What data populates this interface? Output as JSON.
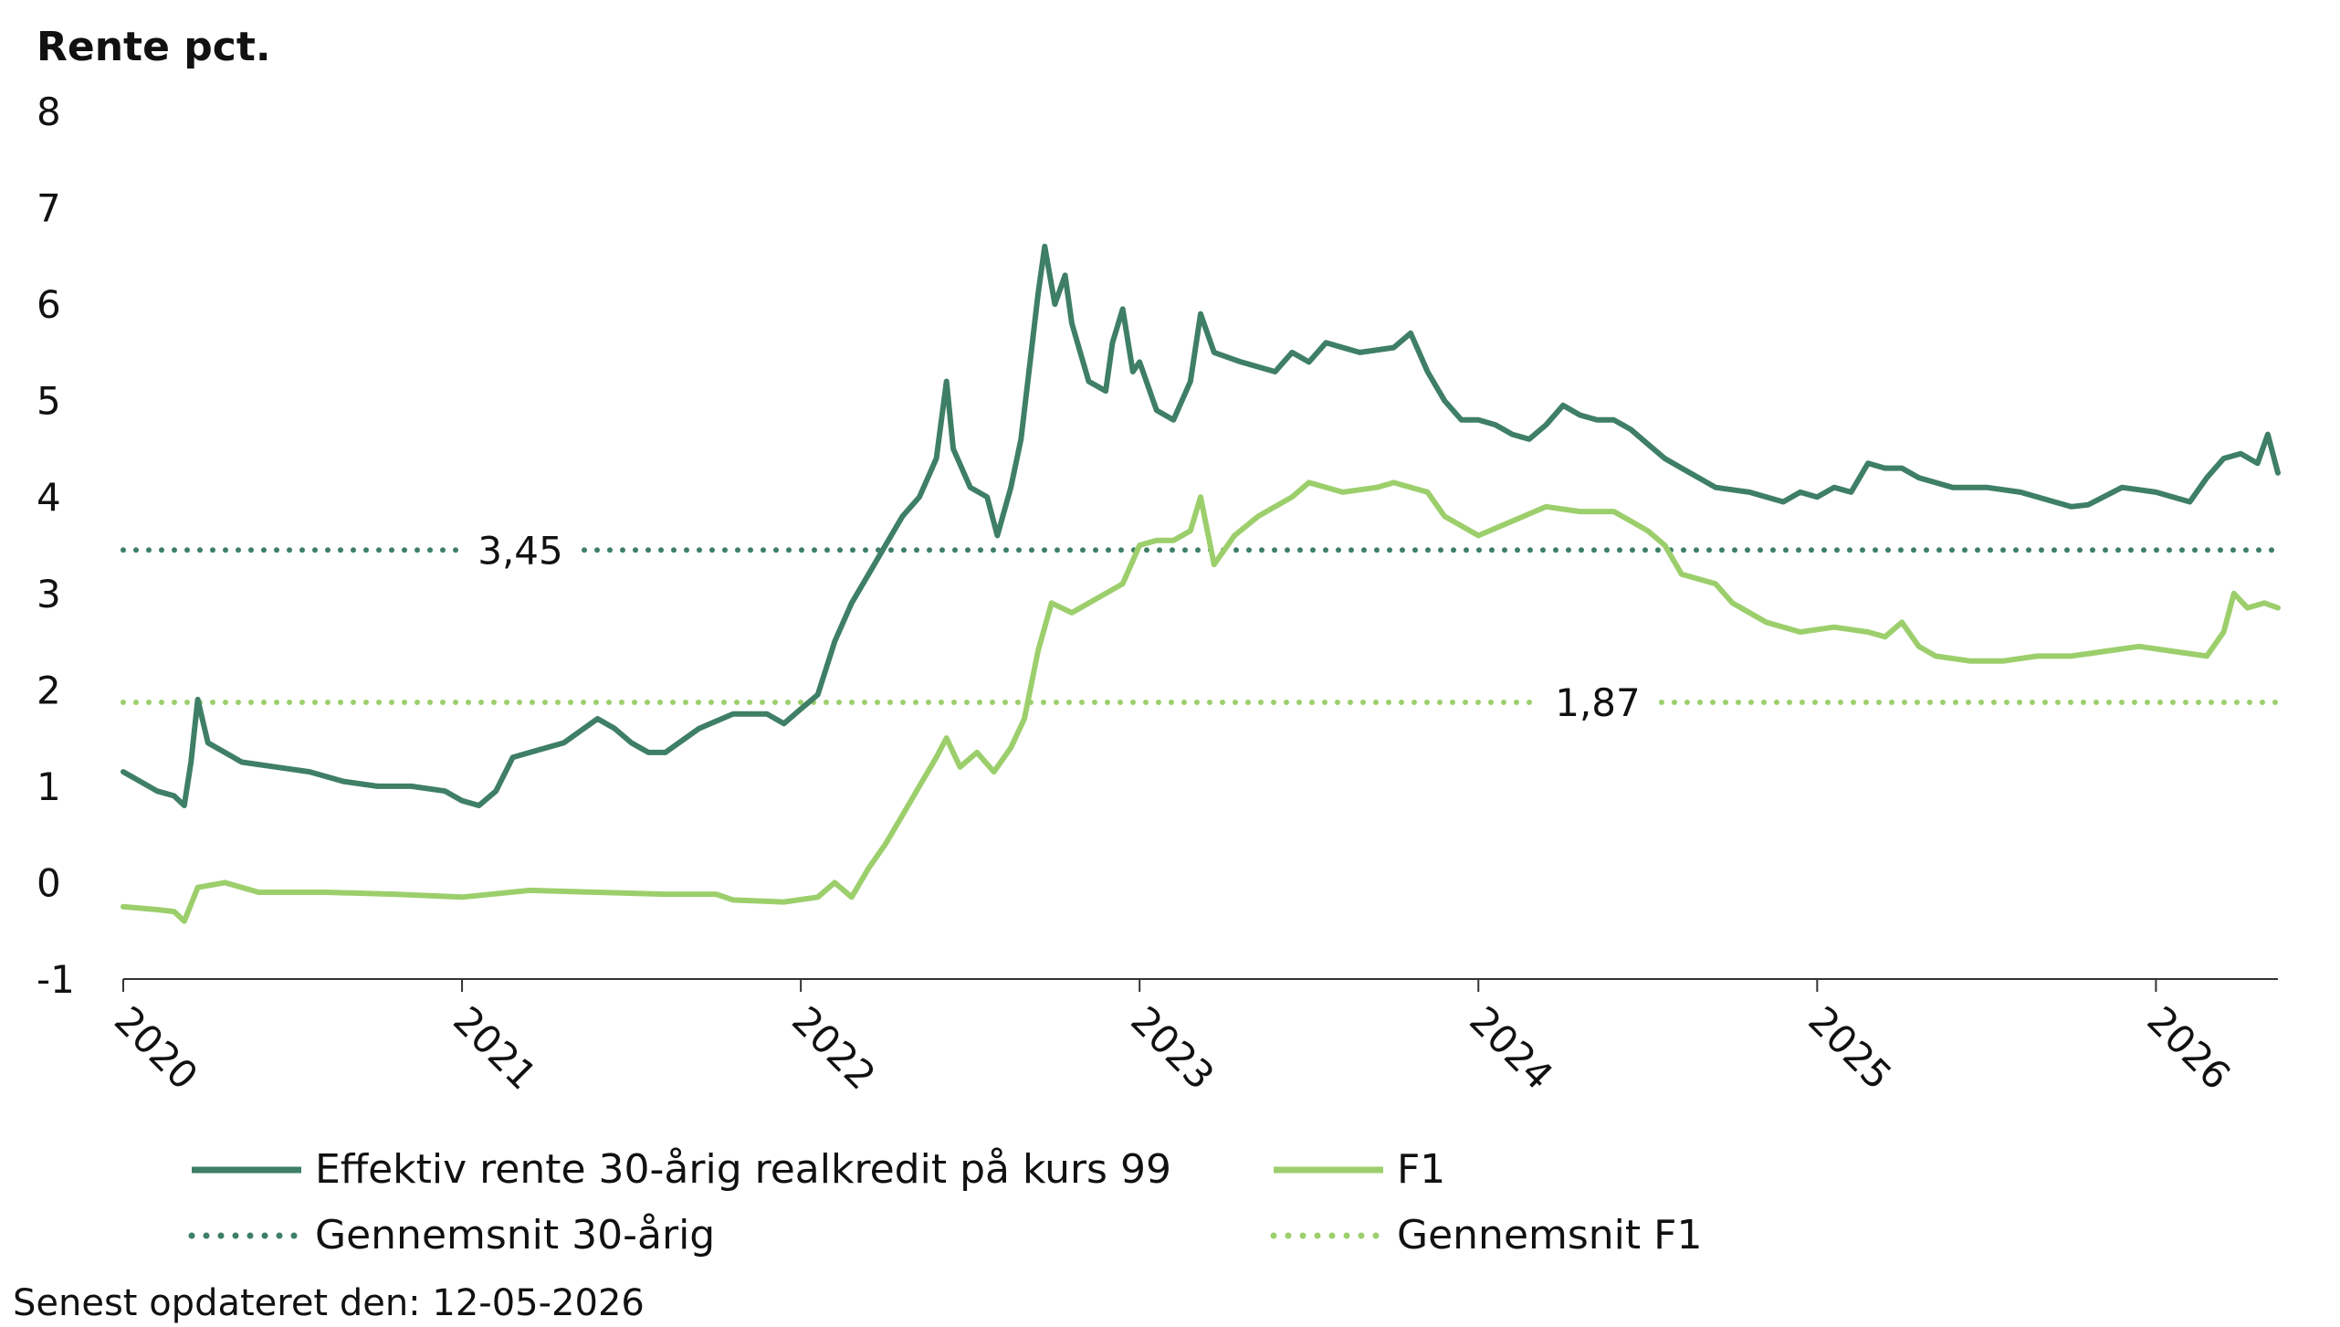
{
  "chart_data": {
    "type": "line",
    "ylabel": "Rente pct.",
    "ylim": [
      -1,
      8
    ],
    "yticks": [
      "8",
      "7",
      "6",
      "5",
      "4",
      "3",
      "2",
      "1",
      "0",
      "-1"
    ],
    "x_tick_labels": [
      "2020",
      "2021",
      "2022",
      "2023",
      "2024",
      "2025",
      "2026"
    ],
    "xlim": [
      2020.0,
      2026.36
    ],
    "colors": {
      "dark": "#3e7f66",
      "light": "#9ccf6c"
    },
    "series": [
      {
        "name": "Effektiv rente 30-årig realkredit på kurs 99",
        "color": "#3e7f66",
        "style": "solid",
        "points": [
          [
            2020.0,
            1.15
          ],
          [
            2020.05,
            1.05
          ],
          [
            2020.1,
            0.95
          ],
          [
            2020.15,
            0.9
          ],
          [
            2020.18,
            0.8
          ],
          [
            2020.2,
            1.25
          ],
          [
            2020.22,
            1.9
          ],
          [
            2020.25,
            1.45
          ],
          [
            2020.3,
            1.35
          ],
          [
            2020.35,
            1.25
          ],
          [
            2020.45,
            1.2
          ],
          [
            2020.55,
            1.15
          ],
          [
            2020.65,
            1.05
          ],
          [
            2020.75,
            1.0
          ],
          [
            2020.85,
            1.0
          ],
          [
            2020.95,
            0.95
          ],
          [
            2021.0,
            0.85
          ],
          [
            2021.05,
            0.8
          ],
          [
            2021.1,
            0.95
          ],
          [
            2021.15,
            1.3
          ],
          [
            2021.2,
            1.35
          ],
          [
            2021.3,
            1.45
          ],
          [
            2021.4,
            1.7
          ],
          [
            2021.45,
            1.6
          ],
          [
            2021.5,
            1.45
          ],
          [
            2021.55,
            1.35
          ],
          [
            2021.6,
            1.35
          ],
          [
            2021.7,
            1.6
          ],
          [
            2021.8,
            1.75
          ],
          [
            2021.9,
            1.75
          ],
          [
            2021.95,
            1.65
          ],
          [
            2022.0,
            1.8
          ],
          [
            2022.05,
            1.95
          ],
          [
            2022.1,
            2.5
          ],
          [
            2022.15,
            2.9
          ],
          [
            2022.2,
            3.2
          ],
          [
            2022.25,
            3.5
          ],
          [
            2022.3,
            3.8
          ],
          [
            2022.35,
            4.0
          ],
          [
            2022.4,
            4.4
          ],
          [
            2022.43,
            5.2
          ],
          [
            2022.45,
            4.5
          ],
          [
            2022.5,
            4.1
          ],
          [
            2022.55,
            4.0
          ],
          [
            2022.58,
            3.6
          ],
          [
            2022.62,
            4.1
          ],
          [
            2022.65,
            4.6
          ],
          [
            2022.68,
            5.5
          ],
          [
            2022.7,
            6.1
          ],
          [
            2022.72,
            6.6
          ],
          [
            2022.75,
            6.0
          ],
          [
            2022.78,
            6.3
          ],
          [
            2022.8,
            5.8
          ],
          [
            2022.85,
            5.2
          ],
          [
            2022.9,
            5.1
          ],
          [
            2022.92,
            5.6
          ],
          [
            2022.95,
            5.95
          ],
          [
            2022.98,
            5.3
          ],
          [
            2023.0,
            5.4
          ],
          [
            2023.05,
            4.9
          ],
          [
            2023.1,
            4.8
          ],
          [
            2023.15,
            5.2
          ],
          [
            2023.18,
            5.9
          ],
          [
            2023.22,
            5.5
          ],
          [
            2023.3,
            5.4
          ],
          [
            2023.4,
            5.3
          ],
          [
            2023.45,
            5.5
          ],
          [
            2023.5,
            5.4
          ],
          [
            2023.55,
            5.6
          ],
          [
            2023.65,
            5.5
          ],
          [
            2023.75,
            5.55
          ],
          [
            2023.8,
            5.7
          ],
          [
            2023.85,
            5.3
          ],
          [
            2023.9,
            5.0
          ],
          [
            2023.95,
            4.8
          ],
          [
            2024.0,
            4.8
          ],
          [
            2024.05,
            4.75
          ],
          [
            2024.1,
            4.65
          ],
          [
            2024.15,
            4.6
          ],
          [
            2024.2,
            4.75
          ],
          [
            2024.25,
            4.95
          ],
          [
            2024.3,
            4.85
          ],
          [
            2024.35,
            4.8
          ],
          [
            2024.4,
            4.8
          ],
          [
            2024.45,
            4.7
          ],
          [
            2024.5,
            4.55
          ],
          [
            2024.55,
            4.4
          ],
          [
            2024.6,
            4.3
          ],
          [
            2024.65,
            4.2
          ],
          [
            2024.7,
            4.1
          ],
          [
            2024.8,
            4.05
          ],
          [
            2024.9,
            3.95
          ],
          [
            2024.95,
            4.05
          ],
          [
            2025.0,
            4.0
          ],
          [
            2025.05,
            4.1
          ],
          [
            2025.1,
            4.05
          ],
          [
            2025.15,
            4.35
          ],
          [
            2025.2,
            4.3
          ],
          [
            2025.25,
            4.3
          ],
          [
            2025.3,
            4.2
          ],
          [
            2025.4,
            4.1
          ],
          [
            2025.5,
            4.1
          ],
          [
            2025.6,
            4.05
          ],
          [
            2025.7,
            3.95
          ],
          [
            2025.75,
            3.9
          ],
          [
            2025.8,
            3.92
          ],
          [
            2025.9,
            4.1
          ],
          [
            2026.0,
            4.05
          ],
          [
            2026.1,
            3.95
          ],
          [
            2026.15,
            4.2
          ],
          [
            2026.2,
            4.4
          ],
          [
            2026.25,
            4.45
          ],
          [
            2026.3,
            4.35
          ],
          [
            2026.33,
            4.65
          ],
          [
            2026.36,
            4.25
          ]
        ]
      },
      {
        "name": "F1",
        "color": "#9ccf6c",
        "style": "solid",
        "points": [
          [
            2020.0,
            -0.25
          ],
          [
            2020.1,
            -0.28
          ],
          [
            2020.15,
            -0.3
          ],
          [
            2020.18,
            -0.4
          ],
          [
            2020.22,
            -0.05
          ],
          [
            2020.3,
            0.0
          ],
          [
            2020.4,
            -0.1
          ],
          [
            2020.6,
            -0.1
          ],
          [
            2020.8,
            -0.12
          ],
          [
            2021.0,
            -0.15
          ],
          [
            2021.2,
            -0.08
          ],
          [
            2021.4,
            -0.1
          ],
          [
            2021.6,
            -0.12
          ],
          [
            2021.75,
            -0.12
          ],
          [
            2021.8,
            -0.18
          ],
          [
            2021.95,
            -0.2
          ],
          [
            2022.05,
            -0.15
          ],
          [
            2022.1,
            0.0
          ],
          [
            2022.15,
            -0.15
          ],
          [
            2022.2,
            0.15
          ],
          [
            2022.25,
            0.4
          ],
          [
            2022.3,
            0.7
          ],
          [
            2022.35,
            1.0
          ],
          [
            2022.4,
            1.3
          ],
          [
            2022.43,
            1.5
          ],
          [
            2022.47,
            1.2
          ],
          [
            2022.52,
            1.35
          ],
          [
            2022.57,
            1.15
          ],
          [
            2022.62,
            1.4
          ],
          [
            2022.66,
            1.7
          ],
          [
            2022.7,
            2.4
          ],
          [
            2022.74,
            2.9
          ],
          [
            2022.8,
            2.8
          ],
          [
            2022.9,
            3.0
          ],
          [
            2022.95,
            3.1
          ],
          [
            2023.0,
            3.5
          ],
          [
            2023.05,
            3.55
          ],
          [
            2023.1,
            3.55
          ],
          [
            2023.15,
            3.65
          ],
          [
            2023.18,
            4.0
          ],
          [
            2023.22,
            3.3
          ],
          [
            2023.28,
            3.6
          ],
          [
            2023.35,
            3.8
          ],
          [
            2023.45,
            4.0
          ],
          [
            2023.5,
            4.15
          ],
          [
            2023.6,
            4.05
          ],
          [
            2023.7,
            4.1
          ],
          [
            2023.75,
            4.15
          ],
          [
            2023.85,
            4.05
          ],
          [
            2023.9,
            3.8
          ],
          [
            2024.0,
            3.6
          ],
          [
            2024.1,
            3.75
          ],
          [
            2024.2,
            3.9
          ],
          [
            2024.3,
            3.85
          ],
          [
            2024.4,
            3.85
          ],
          [
            2024.5,
            3.65
          ],
          [
            2024.55,
            3.5
          ],
          [
            2024.6,
            3.2
          ],
          [
            2024.7,
            3.1
          ],
          [
            2024.75,
            2.9
          ],
          [
            2024.85,
            2.7
          ],
          [
            2024.95,
            2.6
          ],
          [
            2025.05,
            2.65
          ],
          [
            2025.15,
            2.6
          ],
          [
            2025.2,
            2.55
          ],
          [
            2025.25,
            2.7
          ],
          [
            2025.3,
            2.45
          ],
          [
            2025.35,
            2.35
          ],
          [
            2025.45,
            2.3
          ],
          [
            2025.55,
            2.3
          ],
          [
            2025.65,
            2.35
          ],
          [
            2025.75,
            2.35
          ],
          [
            2025.85,
            2.4
          ],
          [
            2025.95,
            2.45
          ],
          [
            2026.05,
            2.4
          ],
          [
            2026.15,
            2.35
          ],
          [
            2026.2,
            2.6
          ],
          [
            2026.23,
            3.0
          ],
          [
            2026.27,
            2.85
          ],
          [
            2026.32,
            2.9
          ],
          [
            2026.36,
            2.85
          ]
        ]
      }
    ],
    "reference_lines": [
      {
        "name": "Gennemsnit 30-årig",
        "value": 3.45,
        "label": "3,45",
        "color": "#3e7f66",
        "style": "dotted"
      },
      {
        "name": "Gennemsnit F1",
        "value": 1.87,
        "label": "1,87",
        "color": "#9ccf6c",
        "style": "dotted"
      }
    ]
  },
  "legend": {
    "items": [
      {
        "label": "Effektiv rente 30-årig realkredit på kurs 99",
        "color": "#3e7f66",
        "style": "solid"
      },
      {
        "label": "F1",
        "color": "#9ccf6c",
        "style": "solid"
      },
      {
        "label": "Gennemsnit 30-årig",
        "color": "#3e7f66",
        "style": "dotted"
      },
      {
        "label": "Gennemsnit F1",
        "color": "#9ccf6c",
        "style": "dotted"
      }
    ]
  },
  "footer": {
    "updated": "Senest opdateret den: 12-05-2026"
  }
}
